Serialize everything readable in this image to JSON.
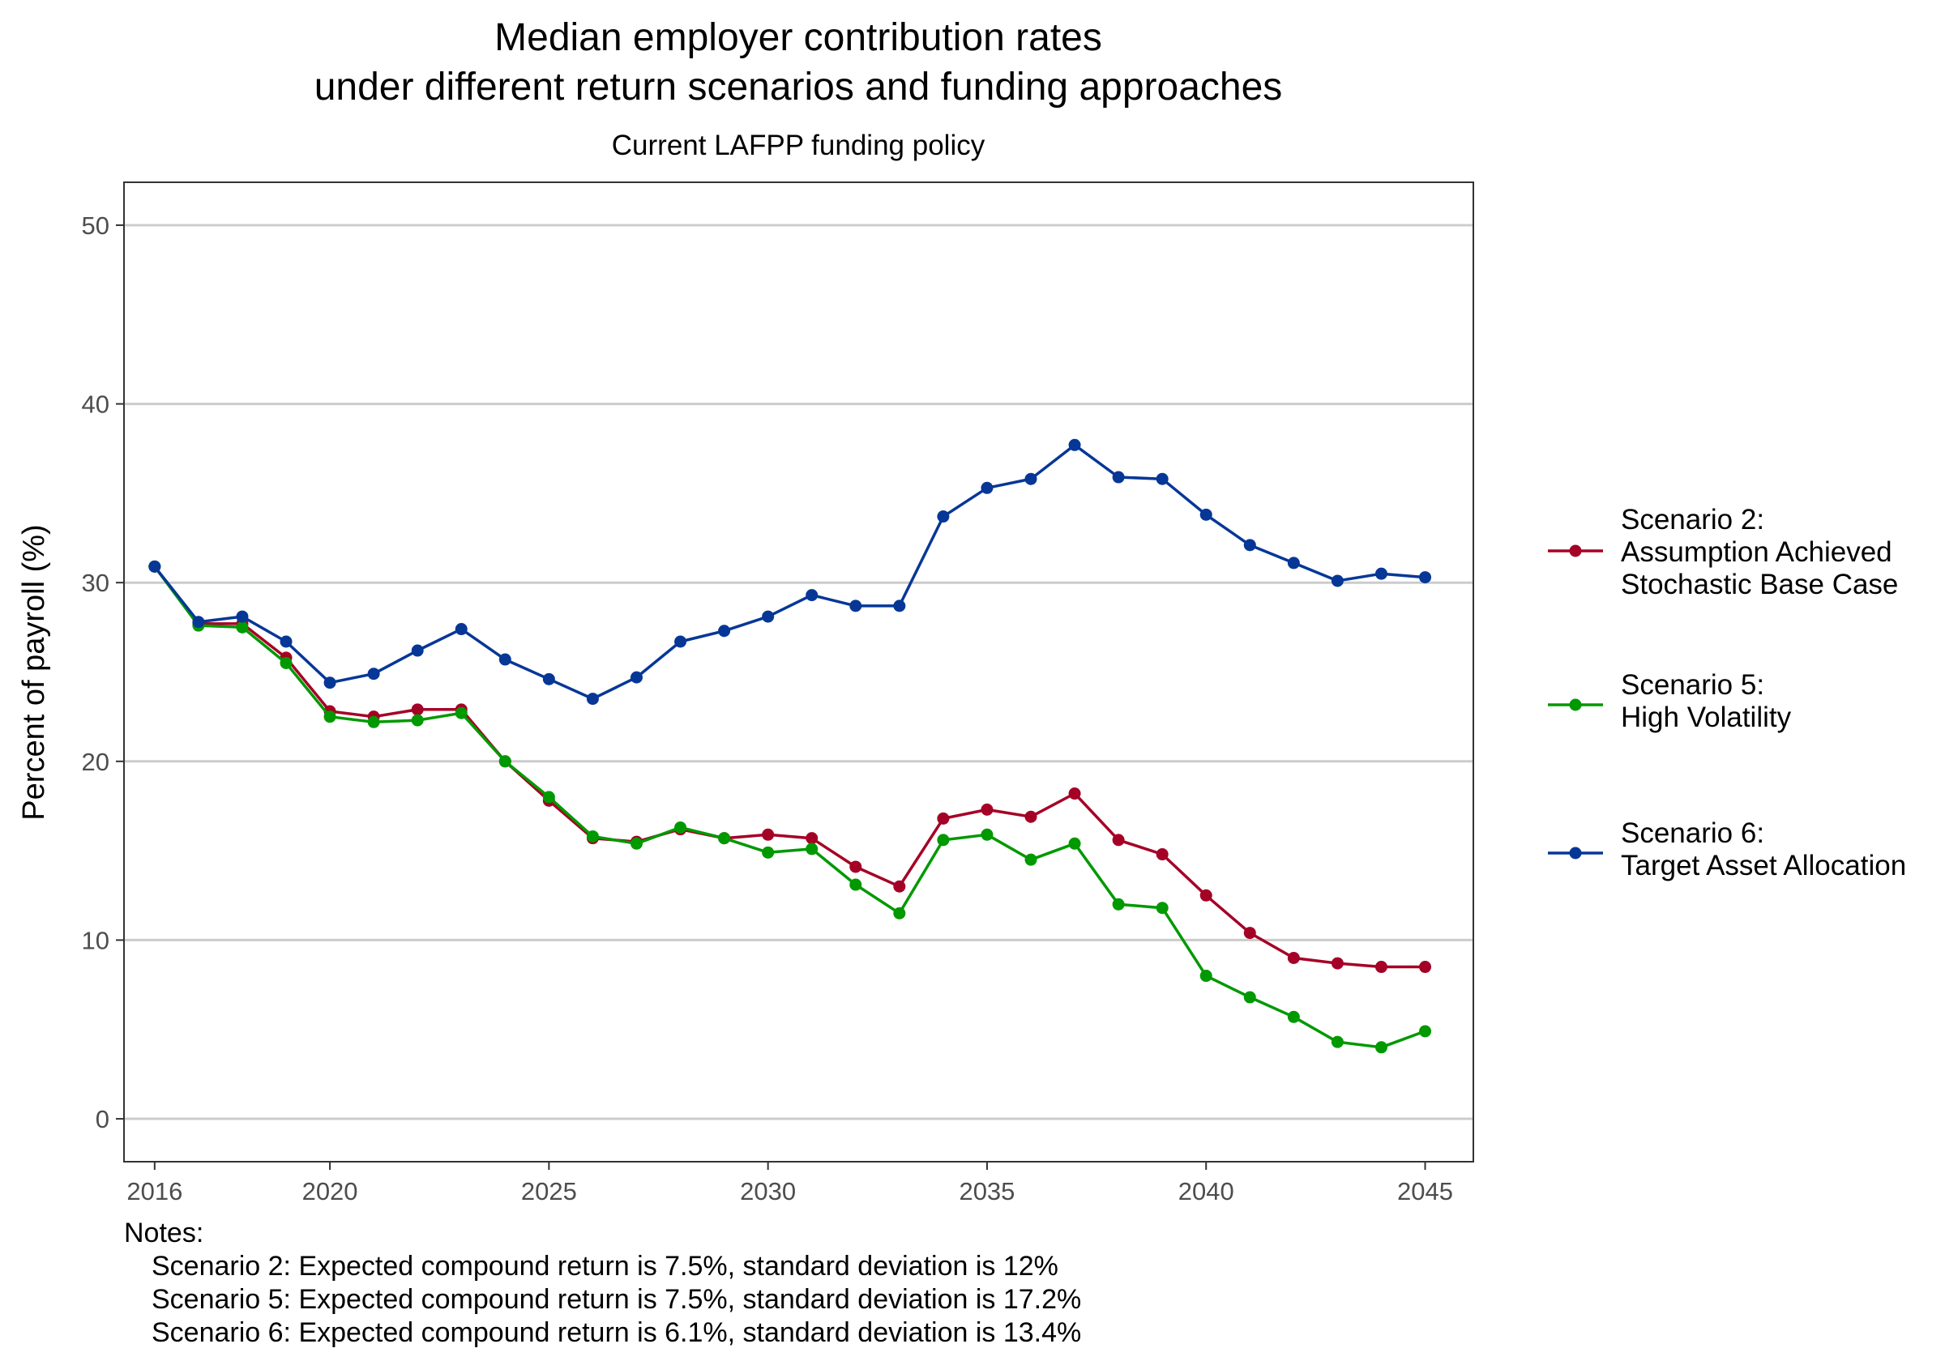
{
  "chart_data": {
    "type": "line",
    "title_lines": [
      "Median employer contribution rates",
      "under different return scenarios and funding approaches"
    ],
    "subtitle": "Current LAFPP funding policy",
    "ylabel": "Percent of payroll (%)",
    "xlabel": "",
    "xlim": [
      2015.3,
      2046.1
    ],
    "ylim": [
      -2.4,
      52.4
    ],
    "x_ticks": [
      2016,
      2020,
      2025,
      2030,
      2035,
      2040,
      2045
    ],
    "y_ticks": [
      0,
      10,
      20,
      30,
      40,
      50
    ],
    "grid": "horizontal major lines",
    "legend_position": "right",
    "x": [
      2016,
      2017,
      2018,
      2019,
      2020,
      2021,
      2022,
      2023,
      2024,
      2025,
      2026,
      2027,
      2028,
      2029,
      2030,
      2031,
      2032,
      2033,
      2034,
      2035,
      2036,
      2037,
      2038,
      2039,
      2040,
      2041,
      2042,
      2043,
      2044,
      2045
    ],
    "series": [
      {
        "name_lines": [
          "Scenario 2:",
          "Assumption Achieved",
          "Stochastic Base Case"
        ],
        "color": "#a50026",
        "values": [
          30.9,
          27.7,
          27.7,
          25.8,
          22.8,
          22.5,
          22.9,
          22.9,
          20.0,
          17.8,
          15.7,
          15.5,
          16.2,
          15.7,
          15.9,
          15.7,
          14.1,
          13.0,
          16.8,
          17.3,
          16.9,
          18.2,
          15.6,
          14.8,
          12.5,
          10.4,
          9.0,
          8.7,
          8.5,
          8.5
        ]
      },
      {
        "name_lines": [
          "Scenario 5:",
          "High Volatility"
        ],
        "color": "#009900",
        "values": [
          30.9,
          27.6,
          27.5,
          25.5,
          22.5,
          22.2,
          22.3,
          22.7,
          20.0,
          18.0,
          15.8,
          15.4,
          16.3,
          15.7,
          14.9,
          15.1,
          13.1,
          11.5,
          15.6,
          15.9,
          14.5,
          15.4,
          12.0,
          11.8,
          8.0,
          6.8,
          5.7,
          4.3,
          4.0,
          4.9
        ]
      },
      {
        "name_lines": [
          "Scenario 6:",
          "Target Asset Allocation"
        ],
        "color": "#063797",
        "values": [
          30.9,
          27.8,
          28.1,
          26.7,
          24.4,
          24.9,
          26.2,
          27.4,
          25.7,
          24.6,
          23.5,
          24.7,
          26.7,
          27.3,
          28.1,
          29.3,
          28.7,
          28.7,
          33.7,
          35.3,
          35.8,
          37.7,
          35.9,
          35.8,
          33.8,
          32.1,
          31.1,
          30.1,
          30.5,
          30.3
        ]
      }
    ],
    "notes_title": "Notes:",
    "notes": [
      "Scenario 2: Expected compound return is 7.5%, standard deviation is 12%",
      "Scenario 5: Expected compound return is 7.5%, standard deviation is 17.2%",
      "Scenario 6: Expected compound return is 6.1%, standard deviation is 13.4%"
    ]
  }
}
